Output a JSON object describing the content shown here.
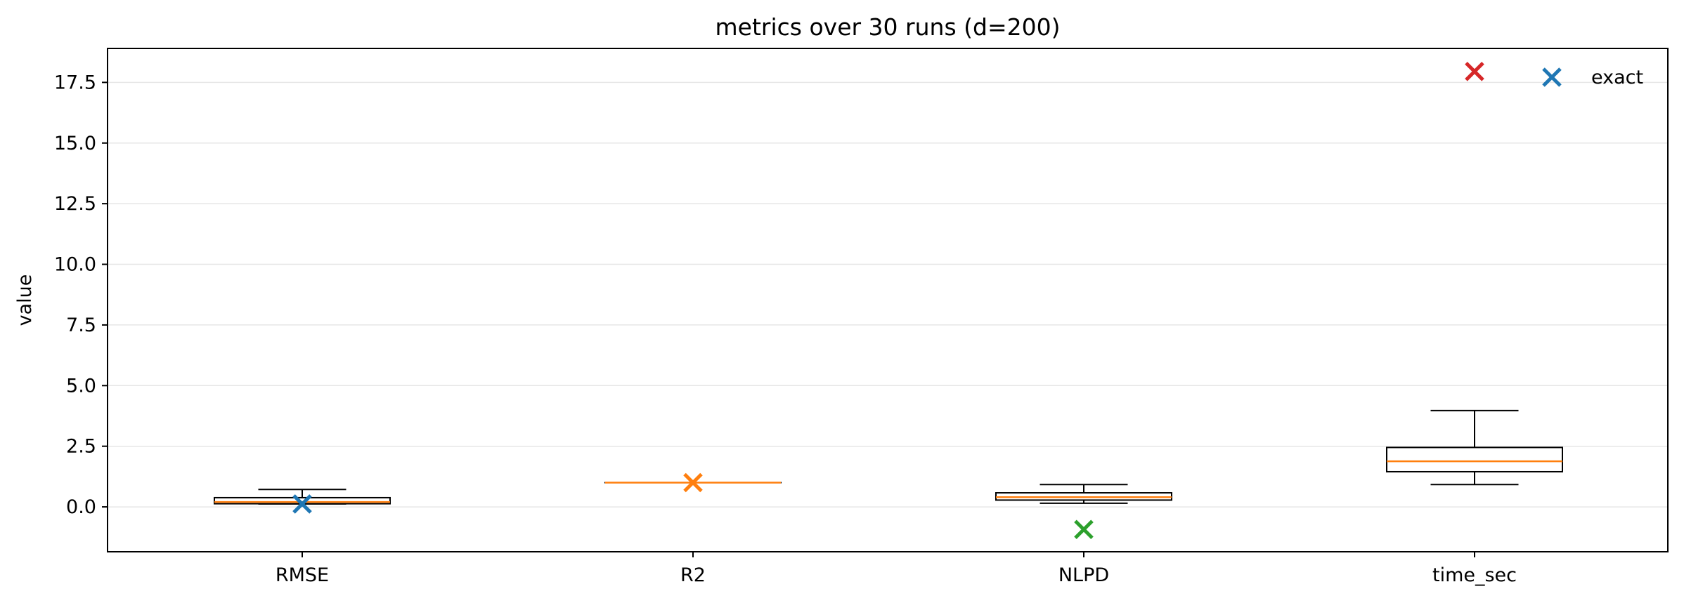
{
  "chart_data": {
    "type": "box",
    "title": "metrics over 30 runs (d=200)",
    "xlabel": "",
    "ylabel": "value",
    "categories": [
      "RMSE",
      "R2",
      "NLPD",
      "time_sec"
    ],
    "ylim": [
      -1.85,
      18.9
    ],
    "yticks": [
      "0.0",
      "2.5",
      "5.0",
      "7.5",
      "10.0",
      "12.5",
      "15.0",
      "17.5"
    ],
    "ytick_values": [
      0,
      2.5,
      5,
      7.5,
      10,
      12.5,
      15,
      17.5
    ],
    "grid": "y",
    "colors": {
      "box": "#000000",
      "median": "#ff7f0e",
      "grid": "#e6e6e6"
    },
    "boxes": [
      {
        "category": "RMSE",
        "whisker_low": 0.12,
        "q1": 0.13,
        "median": 0.2,
        "q3": 0.38,
        "whisker_high": 0.72
      },
      {
        "category": "R2",
        "whisker_low": 1.0,
        "q1": 1.0,
        "median": 1.0,
        "q3": 1.0,
        "whisker_high": 1.0
      },
      {
        "category": "NLPD",
        "whisker_low": 0.15,
        "q1": 0.28,
        "median": 0.4,
        "q3": 0.58,
        "whisker_high": 0.92
      },
      {
        "category": "time_sec",
        "whisker_low": 0.92,
        "q1": 1.45,
        "median": 1.88,
        "q3": 2.45,
        "whisker_high": 3.97
      }
    ],
    "markers": [
      {
        "category": "RMSE",
        "value": 0.12,
        "color": "#1f77b4",
        "marker": "x"
      },
      {
        "category": "R2",
        "value": 1.0,
        "color": "#ff7f0e",
        "marker": "x"
      },
      {
        "category": "NLPD",
        "value": -0.93,
        "color": "#2ca02c",
        "marker": "x"
      },
      {
        "category": "time_sec",
        "value": 17.95,
        "color": "#d62728",
        "marker": "x"
      }
    ],
    "legend": {
      "position": "top-right",
      "entries": [
        {
          "label": "exact",
          "color": "#1f77b4",
          "marker": "x"
        }
      ]
    }
  }
}
